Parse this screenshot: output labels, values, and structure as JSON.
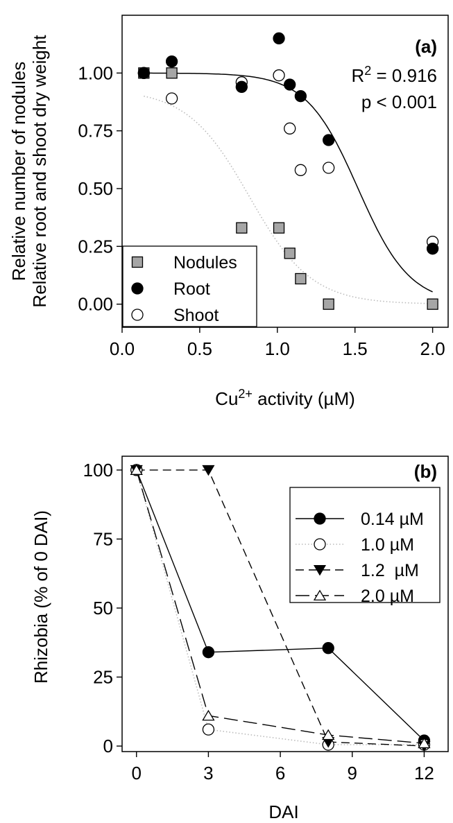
{
  "chart_data": [
    {
      "type": "scatter",
      "panel_label": "(a)",
      "xlabel": "Cu",
      "xlabel_sup": "2+",
      "xlabel_rest": " activity (µM)",
      "ylabel_line1": "Relative number of nodules",
      "ylabel_line2": "Relative root and shoot dry weight",
      "xlim": [
        0.0,
        2.1
      ],
      "ylim": [
        -0.1,
        1.25
      ],
      "x_ticks": [
        "0.0",
        "0.5",
        "1.0",
        "1.5",
        "2.0"
      ],
      "y_ticks": [
        "0.00",
        "0.25",
        "0.50",
        "0.75",
        "1.00"
      ],
      "annotation_r2_prefix": "R",
      "annotation_r2_sup": "2",
      "annotation_r2_rest": " = 0.916",
      "annotation_p": "p < 0.001",
      "legend_position": "bottom-left",
      "series": [
        {
          "name": "Nodules",
          "marker": "square",
          "color": "#a6a6a6",
          "x": [
            0.14,
            0.32,
            0.77,
            1.01,
            1.08,
            1.15,
            1.33,
            2.0
          ],
          "y": [
            1.0,
            1.0,
            0.33,
            0.33,
            0.22,
            0.11,
            0.0,
            0.0
          ]
        },
        {
          "name": "Root",
          "marker": "circle-filled",
          "color": "#000000",
          "x": [
            0.14,
            0.32,
            0.77,
            1.01,
            1.08,
            1.15,
            1.33,
            2.0
          ],
          "y": [
            1.0,
            1.05,
            0.94,
            1.15,
            0.95,
            0.9,
            0.71,
            0.24
          ]
        },
        {
          "name": "Shoot",
          "marker": "circle-open",
          "color": "#000000",
          "x": [
            0.14,
            0.32,
            0.77,
            1.01,
            1.08,
            1.15,
            1.33,
            2.0
          ],
          "y": [
            1.0,
            0.89,
            0.96,
            0.99,
            0.76,
            0.58,
            0.59,
            0.27
          ]
        }
      ],
      "fits": [
        {
          "style": "solid",
          "color": "#000000",
          "top": 1.0,
          "x50": 1.52,
          "slope": 6.0,
          "x_range": [
            0.14,
            2.0
          ]
        },
        {
          "style": "dotted",
          "color": "#bbbbbb",
          "top": 0.93,
          "x50": 0.82,
          "slope": 5.0,
          "x_range": [
            0.14,
            2.0
          ]
        }
      ]
    },
    {
      "type": "line",
      "panel_label": "(b)",
      "xlabel": "DAI",
      "ylabel": "Rhizobia (% of 0 DAI)",
      "xlim": [
        -0.6,
        13.0
      ],
      "ylim": [
        -2,
        105
      ],
      "x_ticks": [
        "0",
        "3",
        "6",
        "9",
        "12"
      ],
      "y_ticks": [
        "0",
        "25",
        "50",
        "75",
        "100"
      ],
      "legend_position": "top-right",
      "series": [
        {
          "name": "0.14 µM",
          "marker": "circle-filled",
          "line": "solid",
          "color": "#000000",
          "x": [
            0,
            3,
            8,
            12
          ],
          "y": [
            100,
            34,
            35.5,
            2
          ]
        },
        {
          "name": "1.0 µM",
          "marker": "circle-open",
          "line": "dotted",
          "color": "#bbbbbb",
          "x": [
            0,
            3,
            8,
            12
          ],
          "y": [
            100,
            6,
            0.5,
            0.5
          ]
        },
        {
          "name": "1.2  µM",
          "marker": "triangle-down",
          "line": "dashed",
          "color": "#000000",
          "x": [
            0,
            3,
            8,
            12
          ],
          "y": [
            100,
            100,
            1.5,
            0
          ]
        },
        {
          "name": "2.0 µM",
          "marker": "triangle-up",
          "line": "longdash",
          "color": "#000000",
          "x": [
            0,
            3,
            8,
            12
          ],
          "y": [
            100,
            11,
            4,
            1
          ]
        }
      ]
    }
  ]
}
